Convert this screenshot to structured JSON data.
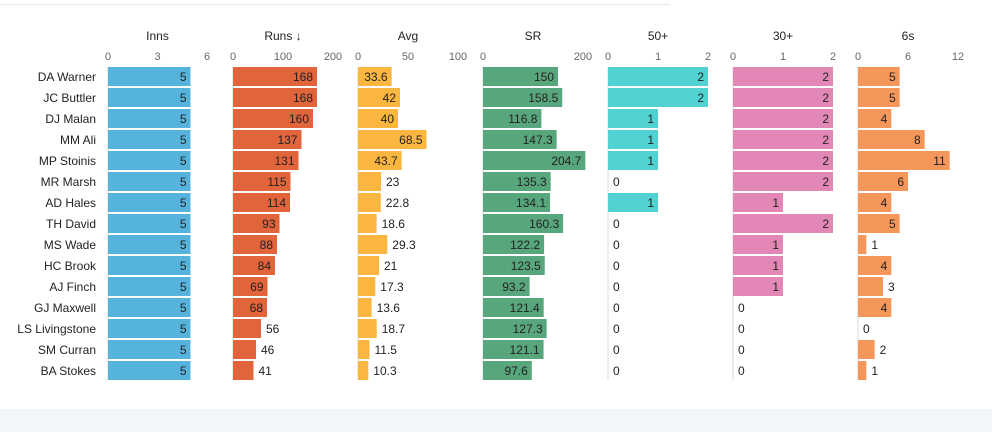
{
  "chart_data": {
    "type": "bar",
    "orientation": "horizontal",
    "categories": [
      "DA Warner",
      "JC Buttler",
      "DJ Malan",
      "MM Ali",
      "MP Stoinis",
      "MR Marsh",
      "AD Hales",
      "TH David",
      "MS Wade",
      "HC Brook",
      "AJ Finch",
      "GJ Maxwell",
      "LS Livingstone",
      "SM Curran",
      "BA Stokes"
    ],
    "panels": [
      {
        "title": "Inns",
        "color": "#56b4dc",
        "xlim": [
          0,
          6
        ],
        "ticks": [
          "0",
          "3",
          "6"
        ],
        "values": [
          "5",
          "5",
          "5",
          "5",
          "5",
          "5",
          "5",
          "5",
          "5",
          "5",
          "5",
          "5",
          "5",
          "5",
          "5"
        ]
      },
      {
        "title": "Runs ↓",
        "color": "#e2643a",
        "xlim": [
          0,
          200
        ],
        "ticks": [
          "0",
          "100",
          "200"
        ],
        "values": [
          "168",
          "168",
          "160",
          "137",
          "131",
          "115",
          "114",
          "93",
          "88",
          "84",
          "69",
          "68",
          "56",
          "46",
          "41"
        ]
      },
      {
        "title": "Avg",
        "color": "#fbb640",
        "xlim": [
          0,
          100
        ],
        "ticks": [
          "0",
          "50",
          "100"
        ],
        "values": [
          "33.6",
          "42",
          "40",
          "68.5",
          "43.7",
          "23",
          "22.8",
          "18.6",
          "29.3",
          "21",
          "17.3",
          "13.6",
          "18.7",
          "11.5",
          "10.3"
        ]
      },
      {
        "title": "SR",
        "color": "#58a77c",
        "xlim": [
          0,
          200
        ],
        "ticks": [
          "0",
          "200"
        ],
        "values": [
          "150",
          "158.5",
          "116.8",
          "147.3",
          "204.7",
          "135.3",
          "134.1",
          "160.3",
          "122.2",
          "123.5",
          "93.2",
          "121.4",
          "127.3",
          "121.1",
          "97.6"
        ]
      },
      {
        "title": "50+",
        "color": "#52d1d3",
        "xlim": [
          0,
          2
        ],
        "ticks": [
          "0",
          "1",
          "2"
        ],
        "values": [
          "2",
          "2",
          "1",
          "1",
          "1",
          "0",
          "1",
          "0",
          "0",
          "0",
          "0",
          "0",
          "0",
          "0",
          "0"
        ]
      },
      {
        "title": "30+",
        "color": "#e387b7",
        "xlim": [
          0,
          2
        ],
        "ticks": [
          "0",
          "1",
          "2"
        ],
        "values": [
          "2",
          "2",
          "2",
          "2",
          "2",
          "2",
          "1",
          "2",
          "1",
          "1",
          "1",
          "0",
          "0",
          "0",
          "0"
        ]
      },
      {
        "title": "6s",
        "color": "#f5965a",
        "xlim": [
          0,
          12
        ],
        "ticks": [
          "0",
          "6",
          "12"
        ],
        "values": [
          "5",
          "5",
          "4",
          "8",
          "11",
          "6",
          "4",
          "5",
          "1",
          "4",
          "3",
          "4",
          "0",
          "2",
          "1"
        ]
      }
    ]
  }
}
